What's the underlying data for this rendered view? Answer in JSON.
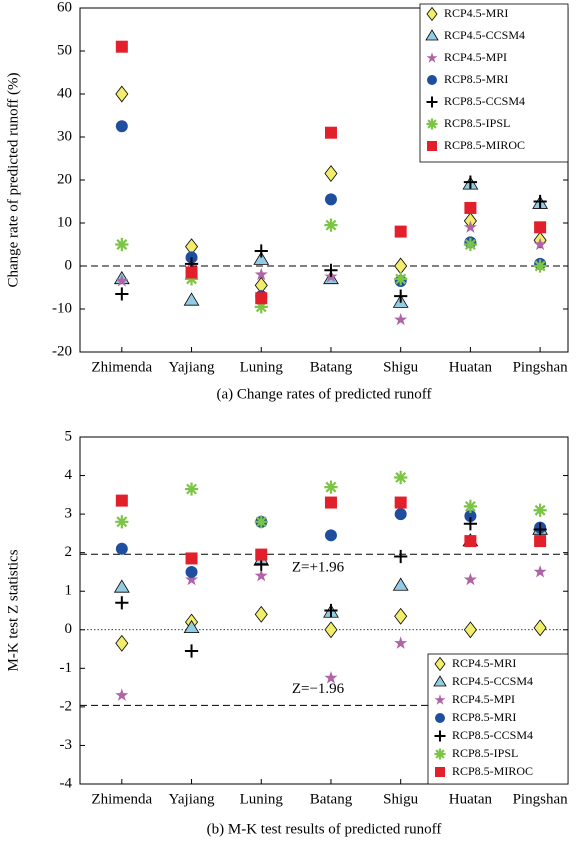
{
  "chart_data": [
    {
      "type": "scatter",
      "caption": "(a) Change rates of predicted  runoff",
      "y_label": "Change rate of predicted runoff (%)",
      "categories": [
        "Zhimenda",
        "Yajiang",
        "Luning",
        "Batang",
        "Shigu",
        "Huatan",
        "Pingshan"
      ],
      "ylim": [
        -20,
        60
      ],
      "yticks": [
        -20,
        -10,
        0,
        10,
        20,
        30,
        40,
        50,
        60
      ],
      "reference_lines": [
        {
          "value": 0,
          "style": "dashed"
        }
      ],
      "legend": "upper right",
      "series": [
        {
          "name": "RCP4.5-MRI",
          "marker": "diamond",
          "color": "#f2ee6b",
          "values": [
            40,
            4.5,
            -4.5,
            21.5,
            0,
            10.5,
            6
          ]
        },
        {
          "name": "RCP4.5-CCSM4",
          "marker": "triangle",
          "color": "#93cbe3",
          "values": [
            -3,
            -8,
            1.5,
            -3,
            -8.5,
            19,
            14.5
          ]
        },
        {
          "name": "RCP4.5-MPI",
          "marker": "star",
          "color": "#b064a6",
          "values": [
            -3.5,
            1,
            -2,
            -2.5,
            -12.5,
            9,
            5
          ]
        },
        {
          "name": "RCP8.5-MRI",
          "marker": "circle",
          "color": "#1f4e9e",
          "values": [
            32.5,
            2,
            -7,
            15.5,
            -3.5,
            5.5,
            0.5
          ]
        },
        {
          "name": "RCP8.5-CCSM4",
          "marker": "plus",
          "color": "#000000",
          "values": [
            -6.5,
            0.5,
            3.5,
            -1,
            -7,
            19.5,
            15
          ]
        },
        {
          "name": "RCP8.5-IPSL",
          "marker": "asterisk",
          "color": "#7cc544",
          "values": [
            5,
            -3,
            -9.5,
            9.5,
            -3,
            5,
            0
          ]
        },
        {
          "name": "RCP8.5-MIROC",
          "marker": "square",
          "color": "#e2202b",
          "values": [
            51,
            -1.5,
            -7.5,
            31,
            8,
            13.5,
            9
          ]
        }
      ]
    },
    {
      "type": "scatter",
      "caption": "(b) M-K test results of predicted runoff",
      "y_label": "M-K test Z statistics",
      "categories": [
        "Zhimenda",
        "Yajiang",
        "Luning",
        "Batang",
        "Shigu",
        "Huatan",
        "Pingshan"
      ],
      "ylim": [
        -4,
        5
      ],
      "yticks": [
        -4,
        -3,
        -2,
        -1,
        0,
        1,
        2,
        3,
        4,
        5
      ],
      "reference_lines": [
        {
          "value": 1.96,
          "style": "dashed",
          "label": "Z=+1.96"
        },
        {
          "value": 0,
          "style": "dotted"
        },
        {
          "value": -1.96,
          "style": "dashed",
          "label": "Z=−1.96"
        }
      ],
      "legend": "lower right",
      "series": [
        {
          "name": "RCP4.5-MRI",
          "marker": "diamond",
          "color": "#f2ee6b",
          "values": [
            -0.35,
            0.2,
            0.4,
            0,
            0.35,
            0,
            0.05
          ]
        },
        {
          "name": "RCP4.5-CCSM4",
          "marker": "triangle",
          "color": "#93cbe3",
          "values": [
            1.1,
            0.05,
            1.8,
            0.45,
            1.15,
            2.3,
            2.6
          ]
        },
        {
          "name": "RCP4.5-MPI",
          "marker": "star",
          "color": "#b064a6",
          "values": [
            -1.7,
            1.3,
            1.4,
            -1.25,
            -0.35,
            1.3,
            1.5
          ]
        },
        {
          "name": "RCP8.5-MRI",
          "marker": "circle",
          "color": "#1f4e9e",
          "values": [
            2.1,
            1.5,
            2.8,
            2.45,
            3,
            2.95,
            2.65
          ]
        },
        {
          "name": "RCP8.5-CCSM4",
          "marker": "plus",
          "color": "#000000",
          "values": [
            0.7,
            -0.55,
            1.7,
            0.5,
            1.9,
            2.75,
            2.6
          ]
        },
        {
          "name": "RCP8.5-IPSL",
          "marker": "asterisk",
          "color": "#7cc544",
          "values": [
            2.8,
            3.65,
            2.8,
            3.7,
            3.95,
            3.2,
            3.1
          ]
        },
        {
          "name": "RCP8.5-MIROC",
          "marker": "square",
          "color": "#e2202b",
          "values": [
            3.35,
            1.85,
            1.95,
            3.3,
            3.3,
            2.3,
            2.3
          ]
        }
      ]
    }
  ]
}
